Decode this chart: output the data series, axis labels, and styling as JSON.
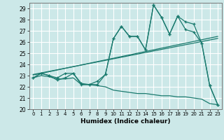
{
  "xlabel": "Humidex (Indice chaleur)",
  "xlim": [
    -0.5,
    23.5
  ],
  "ylim": [
    20,
    29.5
  ],
  "yticks": [
    20,
    21,
    22,
    23,
    24,
    25,
    26,
    27,
    28,
    29
  ],
  "xticks": [
    0,
    1,
    2,
    3,
    4,
    5,
    6,
    7,
    8,
    9,
    10,
    11,
    12,
    13,
    14,
    15,
    16,
    17,
    18,
    19,
    20,
    21,
    22,
    23
  ],
  "bg_color": "#cce8e8",
  "grid_color": "#ffffff",
  "line_color": "#1a7a6e",
  "series": {
    "main": [
      22.8,
      23.2,
      23.0,
      22.6,
      22.8,
      23.2,
      22.2,
      22.2,
      22.2,
      23.1,
      26.3,
      27.4,
      26.5,
      26.5,
      25.3,
      29.3,
      28.2,
      26.7,
      28.3,
      27.1,
      26.9,
      25.9,
      22.1,
      20.4
    ],
    "upper": [
      22.8,
      23.2,
      23.0,
      22.8,
      23.2,
      23.2,
      22.3,
      22.2,
      22.5,
      23.1,
      26.3,
      27.4,
      26.5,
      26.5,
      25.3,
      29.3,
      28.2,
      26.7,
      28.3,
      27.8,
      27.6,
      25.9,
      22.1,
      20.4
    ],
    "trend1": [
      23.05,
      23.2,
      23.35,
      23.5,
      23.65,
      23.8,
      23.95,
      24.1,
      24.25,
      24.4,
      24.55,
      24.7,
      24.85,
      25.0,
      25.15,
      25.3,
      25.45,
      25.6,
      25.75,
      25.9,
      26.05,
      26.2,
      26.35,
      26.5
    ],
    "trend2": [
      23.1,
      23.24,
      23.38,
      23.52,
      23.66,
      23.8,
      23.94,
      24.08,
      24.22,
      24.36,
      24.5,
      24.64,
      24.78,
      24.92,
      25.06,
      25.2,
      25.34,
      25.48,
      25.62,
      25.76,
      25.9,
      26.04,
      26.18,
      26.32
    ],
    "lower": [
      22.8,
      23.0,
      22.9,
      22.7,
      22.7,
      22.8,
      22.2,
      22.2,
      22.1,
      22.0,
      21.7,
      21.6,
      21.5,
      21.4,
      21.4,
      21.3,
      21.2,
      21.2,
      21.1,
      21.1,
      21.0,
      20.9,
      20.5,
      20.4
    ]
  }
}
